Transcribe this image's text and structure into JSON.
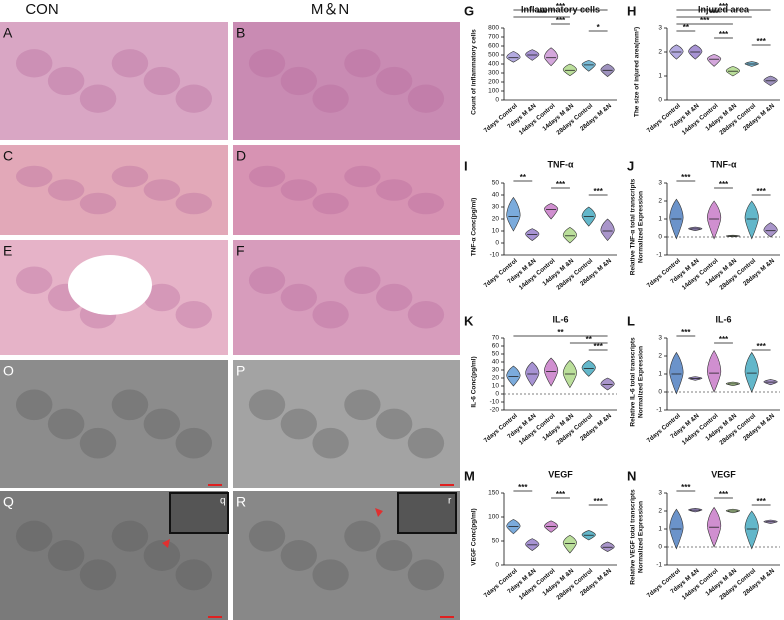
{
  "headers": [
    "CON",
    "M＆N"
  ],
  "image_panels": [
    {
      "label": "A",
      "color": "#d9a6c4"
    },
    {
      "label": "B",
      "color": "#c98bb3"
    },
    {
      "label": "C",
      "color": "#e2a8b8"
    },
    {
      "label": "D",
      "color": "#d793b3"
    },
    {
      "label": "E",
      "color": "#e6b3c8"
    },
    {
      "label": "F",
      "color": "#d79cbc"
    },
    {
      "label": "O",
      "color": "#8c8c8c"
    },
    {
      "label": "P",
      "color": "#a3a3a3"
    },
    {
      "label": "Q",
      "color": "#7a7a7a",
      "inset": "q"
    },
    {
      "label": "R",
      "color": "#888888",
      "inset": "r"
    }
  ],
  "chart_data": [
    {
      "type": "violin",
      "panel": "G",
      "title": "Inflammatory cells",
      "ylabel": "Count of inflammatory cells",
      "categories": [
        "7days Control",
        "7days M &N",
        "14days Control",
        "14days M &N",
        "28days Control",
        "28days M &N"
      ],
      "colors": [
        "#9b8fd6",
        "#8a6fc4",
        "#c58ad0",
        "#a4d47a",
        "#4ba3c7",
        "#7d6ea8"
      ],
      "values": [
        470,
        500,
        470,
        330,
        390,
        330
      ],
      "low": [
        420,
        440,
        380,
        270,
        320,
        260
      ],
      "high": [
        540,
        560,
        580,
        400,
        440,
        400
      ],
      "ylim": [
        0,
        800
      ],
      "yticks": [
        0,
        100,
        200,
        300,
        400,
        500,
        600,
        700,
        800
      ],
      "brackets": [
        {
          "pair": [
            0,
            5
          ],
          "label": "***"
        },
        {
          "pair": [
            0,
            3
          ],
          "label": "***"
        },
        {
          "pair": [
            2,
            3
          ],
          "label": "***"
        },
        {
          "pair": [
            4,
            5
          ],
          "label": "*"
        }
      ]
    },
    {
      "type": "violin",
      "panel": "H",
      "title": "Injured area",
      "ylabel": "The size of injured area(mm²)",
      "categories": [
        "7days Control",
        "7days M &N",
        "14days Control",
        "14days M &N",
        "28days Control",
        "28days M &N"
      ],
      "colors": [
        "#9b8fd6",
        "#8a6fc4",
        "#c58ad0",
        "#a4d47a",
        "#4ba3c7",
        "#7d6ea8"
      ],
      "values": [
        2.0,
        2.0,
        1.7,
        1.2,
        1.5,
        0.8
      ],
      "low": [
        1.7,
        1.7,
        1.4,
        1.0,
        1.4,
        0.6
      ],
      "high": [
        2.3,
        2.3,
        1.9,
        1.4,
        1.6,
        1.0
      ],
      "ylim": [
        0,
        3
      ],
      "yticks": [
        0,
        1,
        2,
        3
      ],
      "brackets": [
        {
          "pair": [
            0,
            5
          ],
          "label": "***"
        },
        {
          "pair": [
            0,
            4
          ],
          "label": "***"
        },
        {
          "pair": [
            0,
            3
          ],
          "label": "***"
        },
        {
          "pair": [
            0,
            1
          ],
          "label": "**"
        },
        {
          "pair": [
            2,
            3
          ],
          "label": "***"
        },
        {
          "pair": [
            4,
            5
          ],
          "label": "***"
        }
      ]
    },
    {
      "type": "violin",
      "panel": "I",
      "title": "TNF-α",
      "ylabel": "TNF-α Conc(pg/ml)",
      "categories": [
        "7days Control",
        "7days M &N",
        "14days Control",
        "14days M &N",
        "28days Control",
        "28days M &N"
      ],
      "colors": [
        "#4f8fd0",
        "#8a6fc4",
        "#c06ac0",
        "#a4d47a",
        "#2f9fb8",
        "#8c72b8"
      ],
      "values": [
        22,
        7,
        28,
        6,
        22,
        10
      ],
      "low": [
        10,
        2,
        20,
        0,
        14,
        2
      ],
      "high": [
        38,
        12,
        33,
        13,
        30,
        20
      ],
      "ylim": [
        -10,
        50
      ],
      "yticks": [
        -10,
        0,
        10,
        20,
        30,
        40,
        50
      ],
      "brackets": [
        {
          "pair": [
            0,
            1
          ],
          "label": "**"
        },
        {
          "pair": [
            2,
            3
          ],
          "label": "***"
        },
        {
          "pair": [
            4,
            5
          ],
          "label": "***"
        }
      ]
    },
    {
      "type": "violin",
      "panel": "J",
      "title": "TNF-α",
      "ylabel": [
        "Relative TNF-α total transcripts",
        "Normalized Expression"
      ],
      "categories": [
        "7days Control",
        "7days M &N",
        "14days Control",
        "14days M &N",
        "28days Control",
        "28days M &N"
      ],
      "colors": [
        "#3a6fb8",
        "#8a6fc4",
        "#c06ac0",
        "#a4d47a",
        "#2f9fb8",
        "#8c72b8"
      ],
      "values": [
        1.0,
        0.45,
        1.0,
        0.05,
        1.0,
        0.35
      ],
      "low": [
        -0.1,
        0.35,
        -0.1,
        0.0,
        -0.1,
        0.0
      ],
      "high": [
        2.1,
        0.55,
        2.0,
        0.1,
        2.0,
        0.8
      ],
      "ylim": [
        -1,
        3
      ],
      "yticks": [
        -1,
        0,
        1,
        2,
        3
      ],
      "reference_line": 0,
      "brackets": [
        {
          "pair": [
            0,
            1
          ],
          "label": "***"
        },
        {
          "pair": [
            2,
            3
          ],
          "label": "***"
        },
        {
          "pair": [
            4,
            5
          ],
          "label": "***"
        }
      ]
    },
    {
      "type": "violin",
      "panel": "K",
      "title": "IL-6",
      "ylabel": "IL-6 Conc(pg/ml)",
      "categories": [
        "7days Control",
        "7days M &N",
        "14days Control",
        "14days M &N",
        "28days Control",
        "28days M &N"
      ],
      "colors": [
        "#4f8fd0",
        "#8a6fc4",
        "#c06ac0",
        "#a4d47a",
        "#2f9fb8",
        "#8c72b8"
      ],
      "values": [
        22,
        25,
        28,
        25,
        32,
        12
      ],
      "low": [
        10,
        10,
        10,
        8,
        22,
        5
      ],
      "high": [
        35,
        40,
        45,
        42,
        42,
        20
      ],
      "ylim": [
        -20,
        70
      ],
      "yticks": [
        -20,
        -10,
        0,
        10,
        20,
        30,
        40,
        50,
        60,
        70
      ],
      "reference_line": 0,
      "brackets": [
        {
          "pair": [
            0,
            5
          ],
          "label": "**"
        },
        {
          "pair": [
            3,
            5
          ],
          "label": "**"
        },
        {
          "pair": [
            4,
            5
          ],
          "label": "***"
        }
      ]
    },
    {
      "type": "violin",
      "panel": "L",
      "title": "IL-6",
      "ylabel": [
        "Relative IL-6 total transcripts",
        "Normalized Expression"
      ],
      "categories": [
        "7days Control",
        "7days M &N",
        "14days Control",
        "14days M &N",
        "28days Control",
        "28days M &N"
      ],
      "colors": [
        "#3a6fb8",
        "#8a6fc4",
        "#c06ac0",
        "#a4d47a",
        "#2f9fb8",
        "#8c72b8"
      ],
      "values": [
        1.0,
        0.75,
        1.05,
        0.45,
        1.05,
        0.55
      ],
      "low": [
        -0.1,
        0.65,
        0.0,
        0.35,
        0.0,
        0.4
      ],
      "high": [
        2.2,
        0.85,
        2.3,
        0.55,
        2.2,
        0.7
      ],
      "ylim": [
        -1,
        3
      ],
      "yticks": [
        -1,
        0,
        1,
        2,
        3
      ],
      "reference_line": 0,
      "brackets": [
        {
          "pair": [
            0,
            1
          ],
          "label": "***"
        },
        {
          "pair": [
            2,
            3
          ],
          "label": "***"
        },
        {
          "pair": [
            4,
            5
          ],
          "label": "***"
        }
      ]
    },
    {
      "type": "violin",
      "panel": "M",
      "title": "VEGF",
      "ylabel": "VEGF Conc(pg/ml)",
      "categories": [
        "7days Control",
        "7days M &N",
        "14days Control",
        "14days M &N",
        "28days Control",
        "28days M &N"
      ],
      "colors": [
        "#4f8fd0",
        "#8a6fc4",
        "#c06ac0",
        "#a4d47a",
        "#2f9fb8",
        "#8c72b8"
      ],
      "values": [
        80,
        42,
        80,
        45,
        62,
        37
      ],
      "low": [
        65,
        30,
        68,
        25,
        52,
        28
      ],
      "high": [
        95,
        55,
        92,
        62,
        72,
        48
      ],
      "ylim": [
        0,
        150
      ],
      "yticks": [
        0,
        50,
        100,
        150
      ],
      "brackets": [
        {
          "pair": [
            0,
            1
          ],
          "label": "***"
        },
        {
          "pair": [
            2,
            3
          ],
          "label": "***"
        },
        {
          "pair": [
            4,
            5
          ],
          "label": "***"
        }
      ]
    },
    {
      "type": "violin",
      "panel": "N",
      "title": "VEGF",
      "ylabel": [
        "Relative VEGF total transcripts",
        "Normalized Expression"
      ],
      "categories": [
        "7days Control",
        "7days M &N",
        "14days Control",
        "14days M &N",
        "28days Control",
        "28days M &N"
      ],
      "colors": [
        "#3a6fb8",
        "#8a6fc4",
        "#c06ac0",
        "#a4d47a",
        "#2f9fb8",
        "#8c72b8"
      ],
      "values": [
        1.0,
        2.05,
        1.1,
        2.0,
        1.0,
        1.4
      ],
      "low": [
        -0.1,
        1.95,
        0.0,
        1.9,
        -0.1,
        1.3
      ],
      "high": [
        2.1,
        2.15,
        2.2,
        2.1,
        2.0,
        1.5
      ],
      "ylim": [
        -1,
        3
      ],
      "yticks": [
        -1,
        0,
        1,
        2,
        3
      ],
      "reference_line": 0,
      "brackets": [
        {
          "pair": [
            0,
            1
          ],
          "label": "***"
        },
        {
          "pair": [
            2,
            3
          ],
          "label": "***"
        },
        {
          "pair": [
            4,
            5
          ],
          "label": "***"
        }
      ]
    }
  ]
}
